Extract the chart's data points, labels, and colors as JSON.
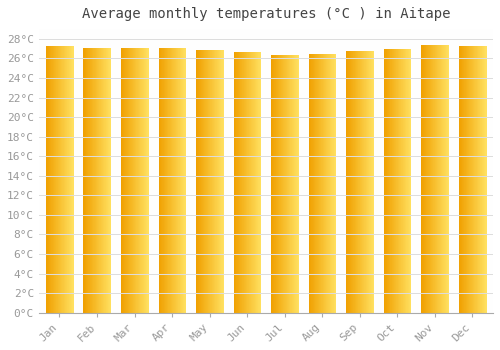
{
  "title": "Average monthly temperatures (°C ) in Aitape",
  "months": [
    "Jan",
    "Feb",
    "Mar",
    "Apr",
    "May",
    "Jun",
    "Jul",
    "Aug",
    "Sep",
    "Oct",
    "Nov",
    "Dec"
  ],
  "values": [
    27.3,
    27.1,
    27.1,
    27.1,
    26.9,
    26.7,
    26.3,
    26.4,
    26.8,
    27.0,
    27.4,
    27.3
  ],
  "bar_color_left": "#F0A000",
  "bar_color_right": "#FFE060",
  "background_color": "#FFFFFF",
  "plot_bg_color": "#FEFEFE",
  "grid_color": "#DDDDDD",
  "ylim": [
    0,
    29
  ],
  "ytick_step": 2,
  "title_fontsize": 10,
  "tick_fontsize": 8,
  "tick_color": "#999999",
  "font_family": "monospace",
  "bar_width": 0.72,
  "gradient_steps": 50
}
